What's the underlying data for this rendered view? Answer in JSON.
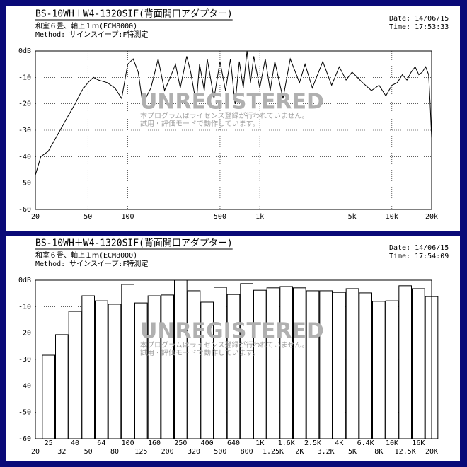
{
  "chart_data": [
    {
      "type": "line",
      "title": "BS-10WH＋W4-1320SIF(背面開口アダプター)",
      "subtitle": "和室６畳、軸上１ｍ(ECM8000)",
      "method": "Method: サインスイープ:F特測定",
      "date": "Date: 14/06/15",
      "time": "Time: 17:53:33",
      "annotations": [
        "UNREGISTERED",
        "本プログラムはライセンス登録が行われていません。",
        "試用・評価モードで動作しています。"
      ],
      "log_x": true,
      "grid": true,
      "color": "#000000",
      "xlim": [
        20,
        20000
      ],
      "xticks": [
        20,
        50,
        100,
        500,
        {
          "value": 1000,
          "label": "1k"
        },
        {
          "value": 5000,
          "label": "5k"
        },
        {
          "value": 10000,
          "label": "10k"
        },
        {
          "value": 20000,
          "label": "20k"
        }
      ],
      "ylim": [
        -60,
        0
      ],
      "yticks": [
        {
          "value": 0,
          "label": "0dB"
        },
        -10,
        -20,
        -30,
        -40,
        -50,
        -60
      ],
      "x": [
        20,
        22,
        25,
        30,
        35,
        40,
        45,
        50,
        55,
        60,
        70,
        80,
        90,
        100,
        110,
        120,
        130,
        150,
        170,
        190,
        210,
        230,
        250,
        280,
        300,
        330,
        350,
        380,
        400,
        450,
        500,
        550,
        600,
        650,
        700,
        750,
        800,
        850,
        900,
        1000,
        1100,
        1200,
        1300,
        1500,
        1700,
        2000,
        2200,
        2500,
        3000,
        3500,
        4000,
        4500,
        5000,
        6000,
        7000,
        8000,
        9000,
        10000,
        11000,
        12000,
        13000,
        14000,
        15000,
        16000,
        17000,
        18000,
        19000,
        19500,
        20000
      ],
      "values": [
        -47,
        -40,
        -38,
        -31,
        -25,
        -20,
        -15,
        -12,
        -10,
        -11,
        -12,
        -14,
        -18,
        -5,
        -3,
        -8,
        -20,
        -14,
        -3,
        -15,
        -10,
        -5,
        -14,
        -2,
        -8,
        -20,
        -5,
        -15,
        -3,
        -18,
        -4,
        -15,
        -3,
        -20,
        -4,
        -14,
        0,
        -12,
        -2,
        -14,
        -3,
        -15,
        -4,
        -18,
        -3,
        -12,
        -5,
        -14,
        -4,
        -13,
        -6,
        -11,
        -8,
        -12,
        -15,
        -13,
        -17,
        -13,
        -12,
        -9,
        -11,
        -8,
        -6,
        -9,
        -8,
        -6,
        -9,
        -20,
        -33
      ]
    },
    {
      "type": "bar",
      "title": "BS-10WH＋W4-1320SIF(背面開口アダプター)",
      "subtitle": "和室６畳、軸上１ｍ(ECM8000)",
      "method": "Method: サインスイープ:F特測定",
      "date": "Date: 14/06/15",
      "time": "Time: 17:54:09",
      "annotations": [
        "UNREGISTERED",
        "本プログラムはライセンス登録が行われていません。",
        "試用・評価モードで動作しています。"
      ],
      "grid": true,
      "color": "#ffffff",
      "ylim": [
        -60,
        0
      ],
      "yticks": [
        {
          "value": 0,
          "label": "0dB"
        },
        -10,
        -20,
        -30,
        -40,
        -50,
        -60
      ],
      "categories": [
        "20",
        "25",
        "32",
        "40",
        "50",
        "64",
        "80",
        "100",
        "125",
        "160",
        "200",
        "250",
        "320",
        "400",
        "500",
        "640",
        "800",
        "1K",
        "1.25K",
        "1.6K",
        "2K",
        "2.5K",
        "3.2K",
        "4K",
        "5K",
        "6.4K",
        "8K",
        "10K",
        "12.5K",
        "16K",
        "20K"
      ],
      "values": [
        null,
        -28.4,
        -20.6,
        -11.8,
        -5.9,
        -7.8,
        -9.1,
        -1.6,
        -8.6,
        -5.9,
        -5.6,
        0,
        -4,
        -8.3,
        -2.7,
        -5.4,
        -1.3,
        -3.8,
        -2.9,
        -2.4,
        -2.9,
        -4,
        -4,
        -4.6,
        -3.2,
        -4.8,
        -8,
        -7.8,
        -2.1,
        -3.2,
        -6.2
      ]
    }
  ]
}
